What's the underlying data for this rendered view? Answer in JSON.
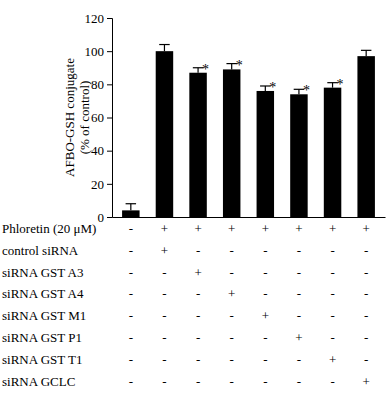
{
  "chart_data": {
    "type": "bar",
    "y_label": [
      "AFBO-GSH conjugate",
      "(% of control)"
    ],
    "categories": [
      null,
      null,
      null,
      null,
      null,
      null,
      null,
      null
    ],
    "values": [
      4,
      100,
      87,
      89,
      76,
      74,
      78,
      97
    ],
    "errors": [
      4,
      4,
      3,
      3.5,
      3,
      3,
      3,
      3.5
    ],
    "annotations": [
      null,
      null,
      "*",
      "*",
      "*",
      "*",
      "*",
      null
    ],
    "color": "#000000",
    "ylim": [
      0,
      120
    ],
    "yticks": [
      0,
      20,
      40,
      60,
      80,
      100,
      120
    ],
    "grid": false,
    "tick_labels": "y",
    "treatments": [
      {
        "label": "Phloretin (20 μM)",
        "values": [
          "-",
          "+",
          "+",
          "+",
          "+",
          "+",
          "+",
          "+"
        ]
      },
      {
        "label": "control siRNA",
        "values": [
          "-",
          "+",
          "-",
          "-",
          "-",
          "-",
          "-",
          "-"
        ]
      },
      {
        "label": "siRNA GST A3",
        "values": [
          "-",
          "-",
          "+",
          "-",
          "-",
          "-",
          "-",
          "-"
        ]
      },
      {
        "label": "siRNA GST A4",
        "values": [
          "-",
          "-",
          "-",
          "+",
          "-",
          "-",
          "-",
          "-"
        ]
      },
      {
        "label": "siRNA GST M1",
        "values": [
          "-",
          "-",
          "-",
          "-",
          "+",
          "-",
          "-",
          "-"
        ]
      },
      {
        "label": "siRNA GST P1",
        "values": [
          "-",
          "-",
          "-",
          "-",
          "-",
          "+",
          "-",
          "-"
        ]
      },
      {
        "label": "siRNA GST T1",
        "values": [
          "-",
          "-",
          "-",
          "-",
          "-",
          "-",
          "+",
          "-"
        ]
      },
      {
        "label": "siRNA GCLC",
        "values": [
          "-",
          "-",
          "-",
          "-",
          "-",
          "-",
          "-",
          "+"
        ]
      }
    ]
  }
}
